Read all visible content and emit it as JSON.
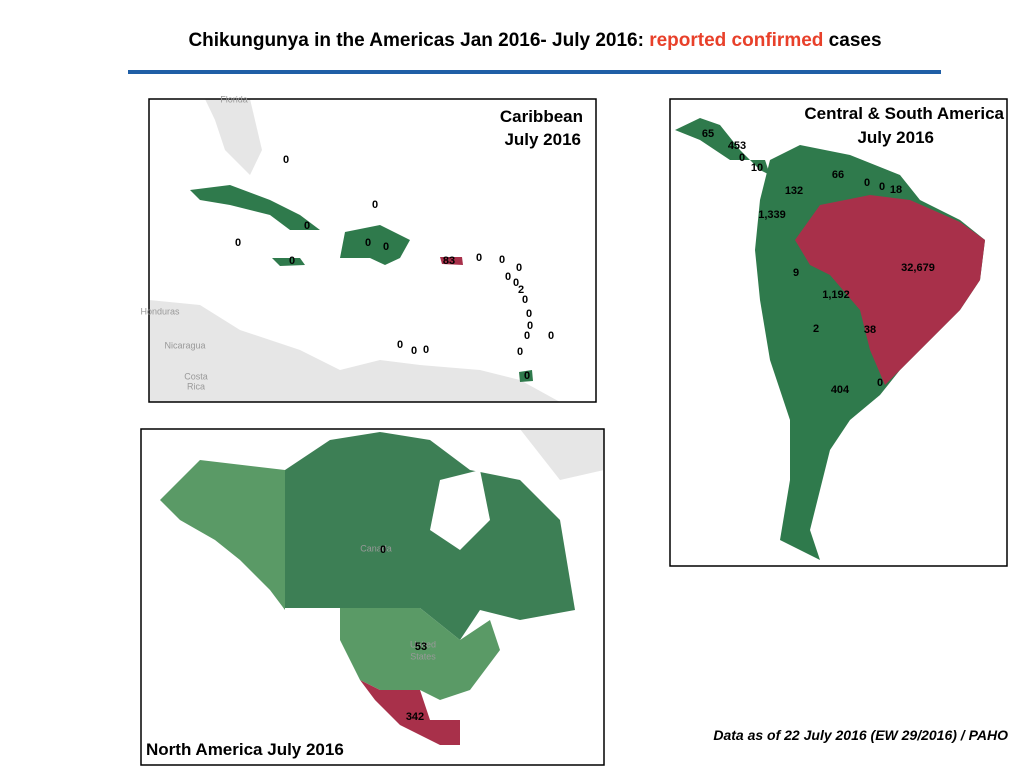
{
  "title": {
    "start": "Chikungunya in the Americas Jan 2016- July 2016: ",
    "highlight": "reported confirmed",
    "end": " cases"
  },
  "panels": [
    {
      "title_lines": [
        "Caribbean",
        "July 2016"
      ],
      "place_names": [
        "Florida",
        "Honduras",
        "Nicaragua",
        "Costa",
        "Rica"
      ],
      "labels": [
        0,
        0,
        0,
        0,
        0,
        0,
        0,
        83,
        0,
        0,
        0,
        0,
        0,
        2,
        0,
        0,
        0,
        0,
        0,
        0,
        0,
        0,
        0,
        0
      ]
    },
    {
      "title_lines": [
        "Central & South America",
        "July 2016"
      ],
      "place_names": [],
      "labels": [
        65,
        453,
        0,
        10,
        132,
        66,
        0,
        0,
        18,
        {
          "value": 1339,
          "label": "1,339"
        },
        {
          "value": 32679,
          "label": "32,679"
        },
        9,
        {
          "value": 1192,
          "label": "1,192"
        },
        2,
        38,
        0,
        404
      ]
    },
    {
      "title_lines": [
        "North America July 2016"
      ],
      "place_names": [
        "Canada",
        "United",
        "States"
      ],
      "labels": [
        0,
        53,
        342
      ]
    }
  ],
  "footer": "Data as of 22 July 2016 (EW 29/2016) / PAHO"
}
